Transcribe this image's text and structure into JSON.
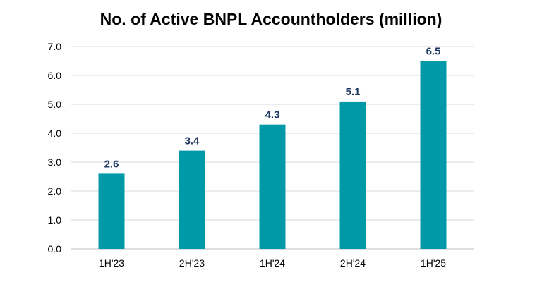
{
  "chart_data": {
    "type": "bar",
    "title": "No. of Active BNPL Accountholders (million)",
    "categories": [
      "1H'23",
      "2H'23",
      "1H'24",
      "2H'24",
      "1H'25"
    ],
    "values": [
      2.6,
      3.4,
      4.3,
      5.1,
      6.5
    ],
    "data_labels": [
      "2.6",
      "3.4",
      "4.3",
      "5.1",
      "6.5"
    ],
    "y_ticks": [
      "0.0",
      "1.0",
      "2.0",
      "3.0",
      "4.0",
      "5.0",
      "6.0",
      "7.0"
    ],
    "ylim": [
      0,
      7
    ],
    "xlabel": "",
    "ylabel": "",
    "grid": true,
    "legend": "none",
    "colors": {
      "bar": "#0099a8",
      "data_label": "#1f3864",
      "grid": "#d9d9d9",
      "axis": "#bfbfbf"
    }
  }
}
